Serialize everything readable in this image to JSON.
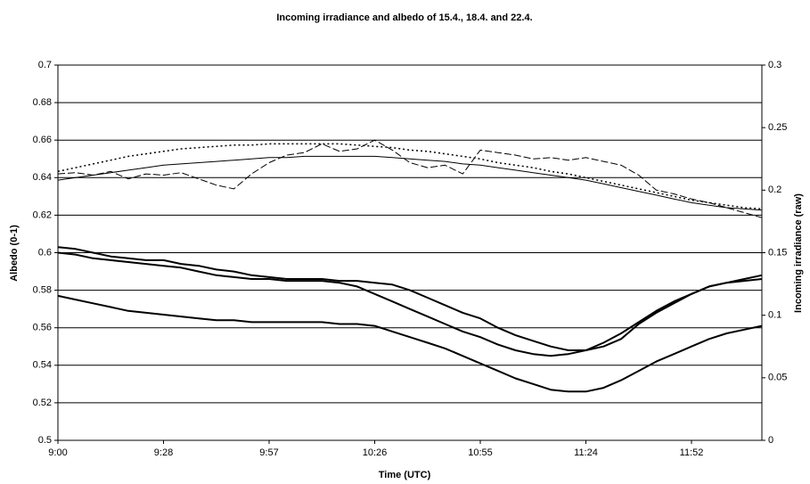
{
  "chart_data": {
    "type": "line",
    "title": "Incoming irradiance and albedo of 15.4., 18.4. and 22.4.",
    "x_label": "Time (UTC)",
    "y_label": "Albedo (0-1)",
    "y2_label": "Incoming irradiance (raw)",
    "categories": [
      "9:00",
      null,
      null,
      null,
      null,
      null,
      "9:28",
      null,
      null,
      null,
      null,
      null,
      "9:57",
      null,
      null,
      null,
      null,
      null,
      "10:26",
      null,
      null,
      null,
      null,
      null,
      "10:55",
      null,
      null,
      null,
      null,
      null,
      "11:24",
      null,
      null,
      null,
      null,
      null,
      "11:52",
      null,
      null,
      null,
      null
    ],
    "ylim": [
      0.5,
      0.7
    ],
    "yticks": [
      0.5,
      0.52,
      0.54,
      0.56,
      0.58,
      0.6,
      0.62,
      0.64,
      0.66,
      0.68,
      0.7
    ],
    "y2lim": [
      0,
      0.3
    ],
    "y2ticks": [
      0,
      0.05,
      0.1,
      0.15,
      0.2,
      0.25,
      0.3
    ],
    "grid": true,
    "series": [
      {
        "color": "#000000",
        "line_style": "solid",
        "line_width": 2,
        "values": [
          0.603,
          0.602,
          0.6,
          0.598,
          0.597,
          0.596,
          0.596,
          0.594,
          0.593,
          0.591,
          0.59,
          0.588,
          0.587,
          0.586,
          0.586,
          0.586,
          0.585,
          0.585,
          0.584,
          0.583,
          0.58,
          0.576,
          0.572,
          0.568,
          0.565,
          0.56,
          0.556,
          0.553,
          0.55,
          0.548,
          0.548,
          0.55,
          0.554,
          0.562,
          0.568,
          0.573,
          0.578,
          0.582,
          0.584,
          0.586,
          0.588
        ]
      },
      {
        "color": "#000000",
        "line_style": "solid",
        "line_width": 2,
        "values": [
          0.6,
          0.599,
          0.597,
          0.596,
          0.595,
          0.594,
          0.593,
          0.592,
          0.59,
          0.588,
          0.587,
          0.586,
          0.586,
          0.585,
          0.585,
          0.585,
          0.584,
          0.582,
          0.578,
          0.574,
          0.57,
          0.566,
          0.562,
          0.558,
          0.555,
          0.551,
          0.548,
          0.546,
          0.545,
          0.546,
          0.548,
          0.552,
          0.557,
          0.563,
          0.569,
          0.574,
          0.578,
          0.582,
          0.584,
          0.585,
          0.586
        ]
      },
      {
        "color": "#000000",
        "line_style": "solid",
        "line_width": 2,
        "values": [
          0.577,
          0.575,
          0.573,
          0.571,
          0.569,
          0.568,
          0.567,
          0.566,
          0.565,
          0.564,
          0.564,
          0.563,
          0.563,
          0.563,
          0.563,
          0.563,
          0.562,
          0.562,
          0.561,
          0.558,
          0.555,
          0.552,
          0.549,
          0.545,
          0.541,
          0.537,
          0.533,
          0.53,
          0.527,
          0.526,
          0.526,
          0.528,
          0.532,
          0.537,
          0.542,
          0.546,
          0.55,
          0.554,
          0.557,
          0.559,
          0.561
        ]
      },
      {
        "color": "#000000",
        "line_style": "dotted",
        "line_width": 1.5,
        "axis": "y2",
        "values": [
          0.215,
          0.218,
          0.221,
          0.224,
          0.227,
          0.229,
          0.231,
          0.233,
          0.234,
          0.235,
          0.236,
          0.236,
          0.237,
          0.237,
          0.237,
          0.237,
          0.237,
          0.236,
          0.235,
          0.234,
          0.232,
          0.231,
          0.229,
          0.227,
          0.225,
          0.222,
          0.22,
          0.218,
          0.215,
          0.213,
          0.21,
          0.207,
          0.204,
          0.201,
          0.198,
          0.195,
          0.192,
          0.19,
          0.188,
          0.186,
          0.185
        ]
      },
      {
        "color": "#000000",
        "line_style": "solid",
        "line_width": 1,
        "axis": "y2",
        "values": [
          0.208,
          0.21,
          0.212,
          0.214,
          0.216,
          0.218,
          0.22,
          0.221,
          0.222,
          0.223,
          0.224,
          0.225,
          0.226,
          0.226,
          0.227,
          0.227,
          0.227,
          0.227,
          0.227,
          0.226,
          0.225,
          0.224,
          0.223,
          0.221,
          0.22,
          0.218,
          0.216,
          0.214,
          0.212,
          0.21,
          0.208,
          0.205,
          0.202,
          0.199,
          0.196,
          0.193,
          0.19,
          0.188,
          0.186,
          0.185,
          0.184
        ]
      },
      {
        "color": "#000000",
        "line_style": "dashed",
        "line_width": 1,
        "axis": "y2",
        "values": [
          0.213,
          0.214,
          0.212,
          0.215,
          0.209,
          0.213,
          0.212,
          0.214,
          0.209,
          0.204,
          0.201,
          0.213,
          0.222,
          0.228,
          0.23,
          0.237,
          0.231,
          0.233,
          0.24,
          0.232,
          0.222,
          0.218,
          0.22,
          0.213,
          0.232,
          0.23,
          0.228,
          0.225,
          0.226,
          0.224,
          0.226,
          0.223,
          0.22,
          0.212,
          0.2,
          0.197,
          0.193,
          0.19,
          0.186,
          0.182,
          0.178
        ]
      }
    ]
  }
}
